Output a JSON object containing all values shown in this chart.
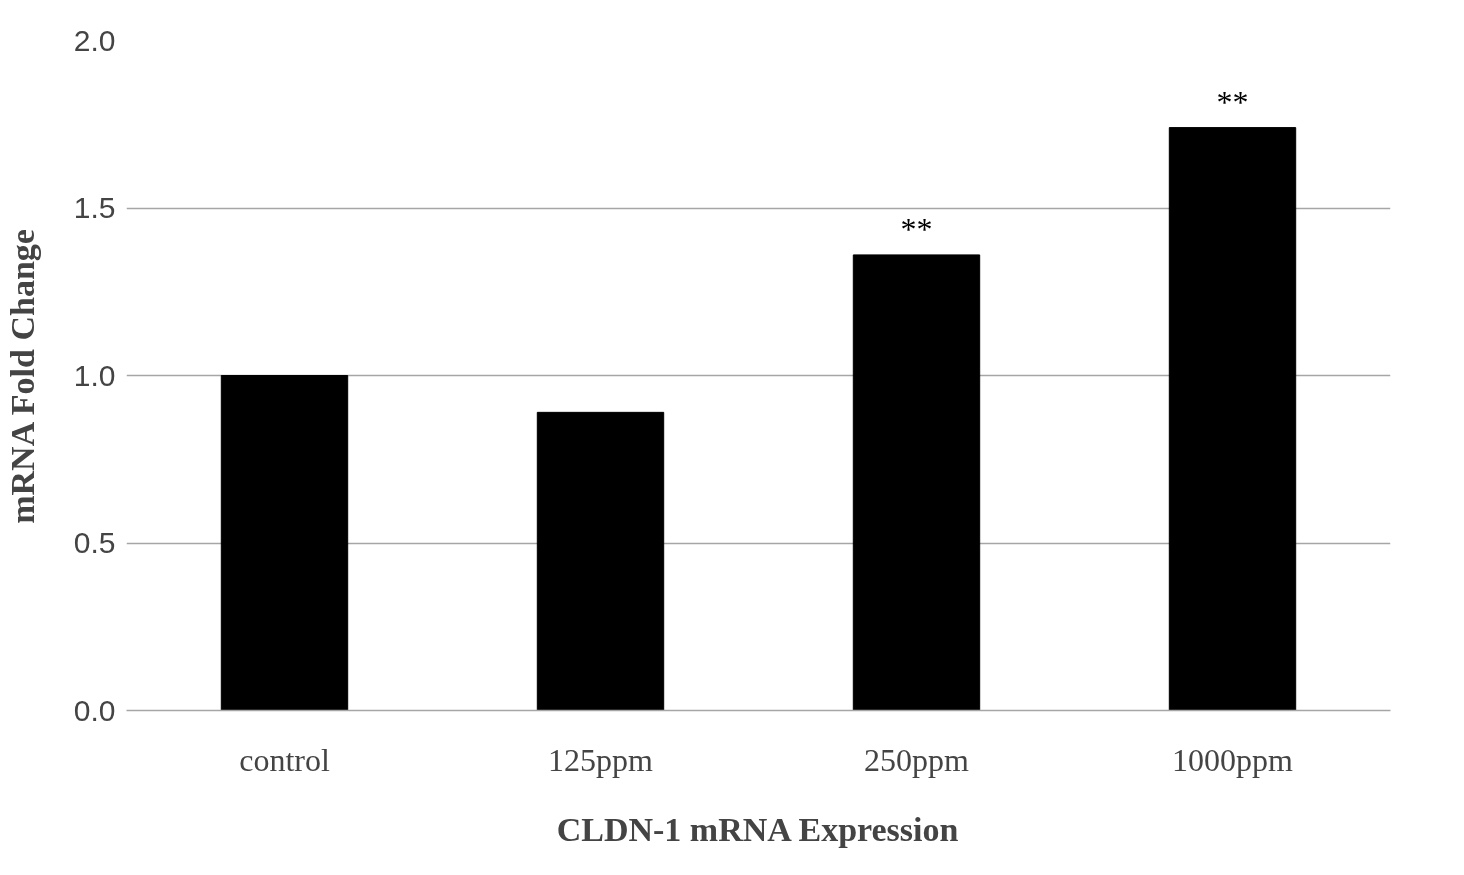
{
  "chart_data": {
    "type": "bar",
    "xlabel": "CLDN-1 mRNA Expression",
    "ylabel": "mRNA Fold Change",
    "categories": [
      "control",
      "125ppm",
      "250ppm",
      "1000ppm"
    ],
    "values": [
      1.0,
      0.89,
      1.36,
      1.74
    ],
    "color": "#000000",
    "ylim": [
      0,
      2
    ],
    "yticks": [
      {
        "value": 0,
        "label": "0.0"
      },
      {
        "value": 0.5,
        "label": "0.5"
      },
      {
        "value": 1,
        "label": "1.0"
      },
      {
        "value": 1.5,
        "label": "1.5"
      },
      {
        "value": 2,
        "label": "2.0"
      }
    ],
    "grid": "y",
    "annotations": [
      {
        "text": "**",
        "x": "250ppm",
        "y": 1.36
      },
      {
        "text": "**",
        "x": "1000ppm",
        "y": 1.74
      }
    ]
  }
}
